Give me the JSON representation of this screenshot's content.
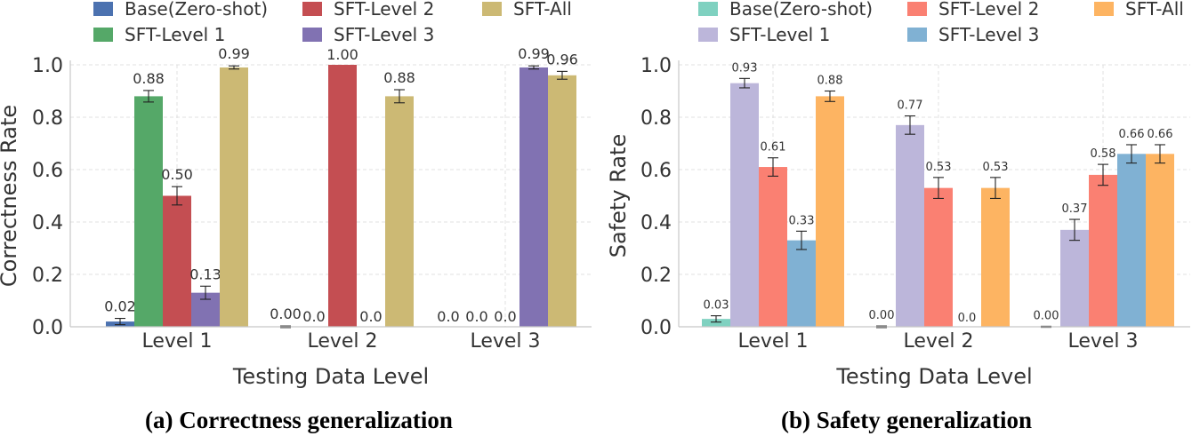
{
  "chart_data": [
    {
      "type": "bar",
      "title": "",
      "caption": "(a) Correctness generalization",
      "xlabel": "Testing Data Level",
      "ylabel": "Correctness Rate",
      "ylim": [
        0,
        1.0
      ],
      "yticks": [
        "0.0",
        "0.2",
        "0.4",
        "0.6",
        "0.8",
        "1.0"
      ],
      "categories": [
        "Level 1",
        "Level 2",
        "Level 3"
      ],
      "legend_position": "top",
      "grid": true,
      "series": [
        {
          "name": "Base(Zero-shot)",
          "color": "#4c72b0",
          "values": [
            0.02,
            0.0,
            0.0
          ],
          "errors": [
            0.012,
            0.003,
            0.0
          ],
          "labels": [
            "0.02",
            "0.00",
            "0.0"
          ]
        },
        {
          "name": "SFT-Level 1",
          "color": "#55a868",
          "values": [
            0.88,
            0.0,
            0.0
          ],
          "errors": [
            0.022,
            0.0,
            0.0
          ],
          "labels": [
            "0.88",
            "0.0",
            "0.0"
          ]
        },
        {
          "name": "SFT-Level 2",
          "color": "#c44e52",
          "values": [
            0.5,
            1.0,
            0.0
          ],
          "errors": [
            0.035,
            0.0,
            0.0
          ],
          "labels": [
            "0.50",
            "1.00",
            "0.0"
          ]
        },
        {
          "name": "SFT-Level 3",
          "color": "#8172b2",
          "values": [
            0.13,
            0.0,
            0.99
          ],
          "errors": [
            0.025,
            0.0,
            0.006
          ],
          "labels": [
            "0.13",
            "0.0",
            "0.99"
          ]
        },
        {
          "name": "SFT-All",
          "color": "#ccb974",
          "values": [
            0.99,
            0.88,
            0.96
          ],
          "errors": [
            0.006,
            0.025,
            0.015
          ],
          "labels": [
            "0.99",
            "0.88",
            "0.96"
          ]
        }
      ]
    },
    {
      "type": "bar",
      "title": "",
      "caption": "(b) Safety generalization",
      "xlabel": "Testing Data Level",
      "ylabel": "Safety Rate",
      "ylim": [
        0,
        1.0
      ],
      "yticks": [
        "0.0",
        "0.2",
        "0.4",
        "0.6",
        "0.8",
        "1.0"
      ],
      "categories": [
        "Level 1",
        "Level 2",
        "Level 3"
      ],
      "legend_position": "top",
      "grid": true,
      "series": [
        {
          "name": "Base(Zero-shot)",
          "color": "#7fd1c0",
          "values": [
            0.03,
            0.0,
            0.0
          ],
          "errors": [
            0.012,
            0.003,
            0.002
          ],
          "labels": [
            "0.03",
            "0.00",
            "0.00"
          ]
        },
        {
          "name": "SFT-Level 1",
          "color": "#bcb6da",
          "values": [
            0.93,
            0.77,
            0.37
          ],
          "errors": [
            0.018,
            0.035,
            0.04
          ],
          "labels": [
            "0.93",
            "0.77",
            "0.37"
          ]
        },
        {
          "name": "SFT-Level 2",
          "color": "#fa8072",
          "values": [
            0.61,
            0.53,
            0.58
          ],
          "errors": [
            0.035,
            0.04,
            0.04
          ],
          "labels": [
            "0.61",
            "0.53",
            "0.58"
          ]
        },
        {
          "name": "SFT-Level 3",
          "color": "#80b1d3",
          "values": [
            0.33,
            0.0,
            0.66
          ],
          "errors": [
            0.035,
            0.0,
            0.035
          ],
          "labels": [
            "0.33",
            "0.0",
            "0.66"
          ]
        },
        {
          "name": "SFT-All",
          "color": "#fdb462",
          "values": [
            0.88,
            0.53,
            0.66
          ],
          "errors": [
            0.02,
            0.04,
            0.035
          ],
          "labels": [
            "0.88",
            "0.53",
            "0.66"
          ]
        }
      ]
    }
  ]
}
